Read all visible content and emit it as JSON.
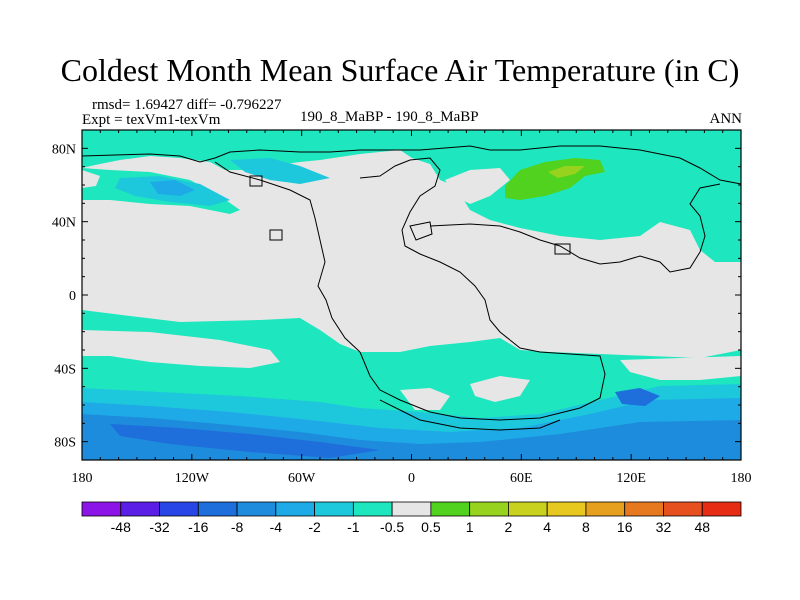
{
  "chart_data": {
    "type": "heatmap",
    "title": "Coldest Month Mean Surface Air Temperature (in C)",
    "stats": "rmsd= 1.69427 diff= -0.796227",
    "expt": "Expt = texVm1-texVm",
    "case_label": "190_8_MaBP - 190_8_MaBP",
    "season": "ANN",
    "projection": "cylindrical equidistant",
    "xlim": [
      -180,
      180
    ],
    "ylim": [
      -90,
      90
    ],
    "x_ticks": [
      {
        "value": -180,
        "label": "180"
      },
      {
        "value": -120,
        "label": "120W"
      },
      {
        "value": -60,
        "label": "60W"
      },
      {
        "value": 0,
        "label": "0"
      },
      {
        "value": 60,
        "label": "60E"
      },
      {
        "value": 120,
        "label": "120E"
      },
      {
        "value": 180,
        "label": "180"
      }
    ],
    "y_ticks": [
      {
        "value": 80,
        "label": "80N"
      },
      {
        "value": 40,
        "label": "40N"
      },
      {
        "value": 0,
        "label": "0"
      },
      {
        "value": -40,
        "label": "40S"
      },
      {
        "value": -80,
        "label": "80S"
      }
    ],
    "colorbar": {
      "levels": [
        "-48",
        "-32",
        "-16",
        "-8",
        "-4",
        "-2",
        "-1",
        "-0.5",
        "0.5",
        "1",
        "2",
        "4",
        "8",
        "16",
        "32",
        "48"
      ],
      "colors": [
        "#8c14e6",
        "#5a1ee6",
        "#2846e6",
        "#1e6edc",
        "#1e8cdc",
        "#1eaae6",
        "#1ec8dc",
        "#1ee6be",
        "#e6e6e6",
        "#50d21e",
        "#96d21e",
        "#c8d21e",
        "#e6c81e",
        "#e6a01e",
        "#e6781e",
        "#e6501e",
        "#e62d14"
      ]
    },
    "fields": [
      {
        "region": "northern-high-latitudes",
        "lon": [
          -180,
          180
        ],
        "lat": [
          40,
          90
        ],
        "approx_range": "-2 to -0.5"
      },
      {
        "region": "north-pacific-band",
        "lon": [
          -165,
          -110
        ],
        "lat": [
          45,
          58
        ],
        "approx_range": "-4 to -2"
      },
      {
        "region": "siberia-warm-patch",
        "lon": [
          40,
          75
        ],
        "lat": [
          55,
          75
        ],
        "approx_range": "0.5 to 2"
      },
      {
        "region": "tropics-and-midlatitudes",
        "lon": [
          -180,
          180
        ],
        "lat": [
          -35,
          40
        ],
        "approx_range": "-0.5 to 0.5"
      },
      {
        "region": "southern-midlatitudes",
        "lon": [
          -180,
          180
        ],
        "lat": [
          -60,
          -25
        ],
        "approx_range": "-2 to -0.5"
      },
      {
        "region": "southern-ocean-band",
        "lon": [
          -180,
          180
        ],
        "lat": [
          -85,
          -60
        ],
        "approx_range": "-8 to -2"
      }
    ]
  }
}
